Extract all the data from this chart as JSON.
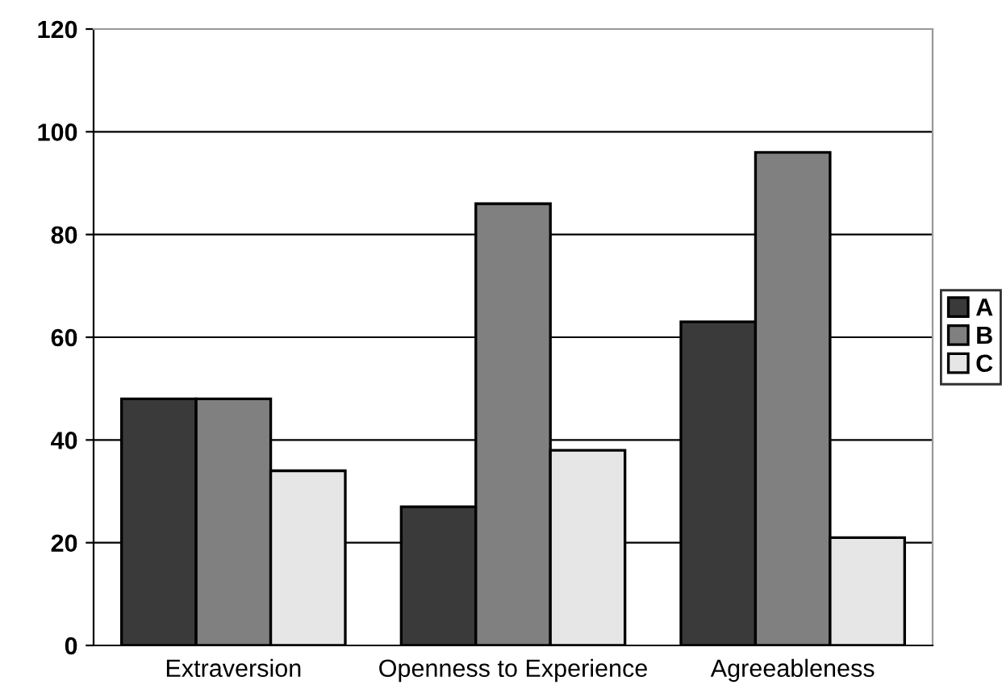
{
  "chart_data": {
    "type": "bar",
    "categories": [
      "Extraversion",
      "Openness to Experience",
      "Agreeableness"
    ],
    "series": [
      {
        "name": "A",
        "color": "#3a3a3a",
        "values": [
          48,
          27,
          63
        ]
      },
      {
        "name": "B",
        "color": "#808080",
        "values": [
          48,
          86,
          96
        ]
      },
      {
        "name": "C",
        "color": "#e6e6e6",
        "values": [
          34,
          38,
          21
        ]
      }
    ],
    "ylim": [
      0,
      120
    ],
    "yticks": [
      0,
      20,
      40,
      60,
      80,
      100,
      120
    ],
    "grid": "y",
    "legend": "right"
  }
}
